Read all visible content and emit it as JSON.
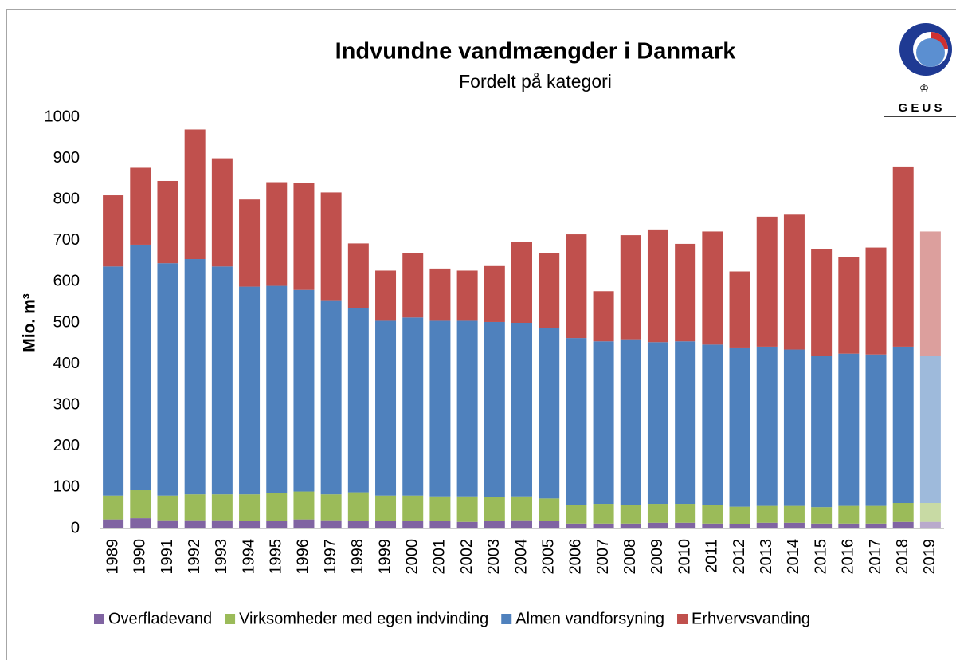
{
  "chart_data": {
    "type": "stacked_bar",
    "title": "Indvundne vandmængder i Danmark",
    "subtitle": "Fordelt på kategori",
    "y_label": "Mio. m³",
    "logo_text": "G E U S",
    "categories": [
      "1989",
      "1990",
      "1991",
      "1992",
      "1993",
      "1994",
      "1995",
      "1996",
      "1997",
      "1998",
      "1999",
      "2000",
      "2001",
      "2002",
      "2003",
      "2004",
      "2005",
      "2006",
      "2007",
      "2008",
      "2009",
      "2010",
      "2011",
      "2012",
      "2013",
      "2014",
      "2015",
      "2016",
      "2017",
      "2018",
      "2019"
    ],
    "series": [
      {
        "name": "Overfladevand",
        "color": "#8064a2",
        "values": [
          22,
          25,
          20,
          20,
          20,
          18,
          18,
          22,
          20,
          18,
          18,
          18,
          18,
          16,
          18,
          20,
          18,
          12,
          12,
          12,
          14,
          14,
          12,
          10,
          14,
          14,
          12,
          12,
          12,
          16,
          16
        ]
      },
      {
        "name": "Virksomheder med egen indvinding",
        "color": "#9bbb59",
        "values": [
          58,
          68,
          60,
          63,
          63,
          65,
          68,
          68,
          63,
          70,
          62,
          62,
          60,
          62,
          58,
          58,
          55,
          46,
          48,
          46,
          46,
          46,
          46,
          43,
          41,
          41,
          40,
          43,
          43,
          46,
          46
        ]
      },
      {
        "name": "Almen vandforsyning",
        "color": "#4f81bd",
        "values": [
          557,
          597,
          565,
          572,
          554,
          505,
          504,
          490,
          472,
          447,
          425,
          433,
          427,
          427,
          426,
          422,
          414,
          405,
          395,
          402,
          393,
          395,
          389,
          387,
          387,
          380,
          368,
          370,
          368,
          380,
          358
        ]
      },
      {
        "name": "Erhvervsvanding",
        "color": "#c0504d",
        "values": [
          173,
          187,
          200,
          315,
          263,
          212,
          252,
          260,
          262,
          158,
          122,
          157,
          127,
          122,
          136,
          197,
          183,
          252,
          122,
          253,
          274,
          237,
          275,
          185,
          316,
          328,
          260,
          235,
          260,
          438,
          302
        ]
      }
    ],
    "faded_categories": [
      "2019"
    ],
    "ylim": [
      0,
      1000
    ],
    "yticks": [
      0,
      100,
      200,
      300,
      400,
      500,
      600,
      700,
      800,
      900,
      1000
    ],
    "grid": false,
    "legend": "bottom"
  }
}
